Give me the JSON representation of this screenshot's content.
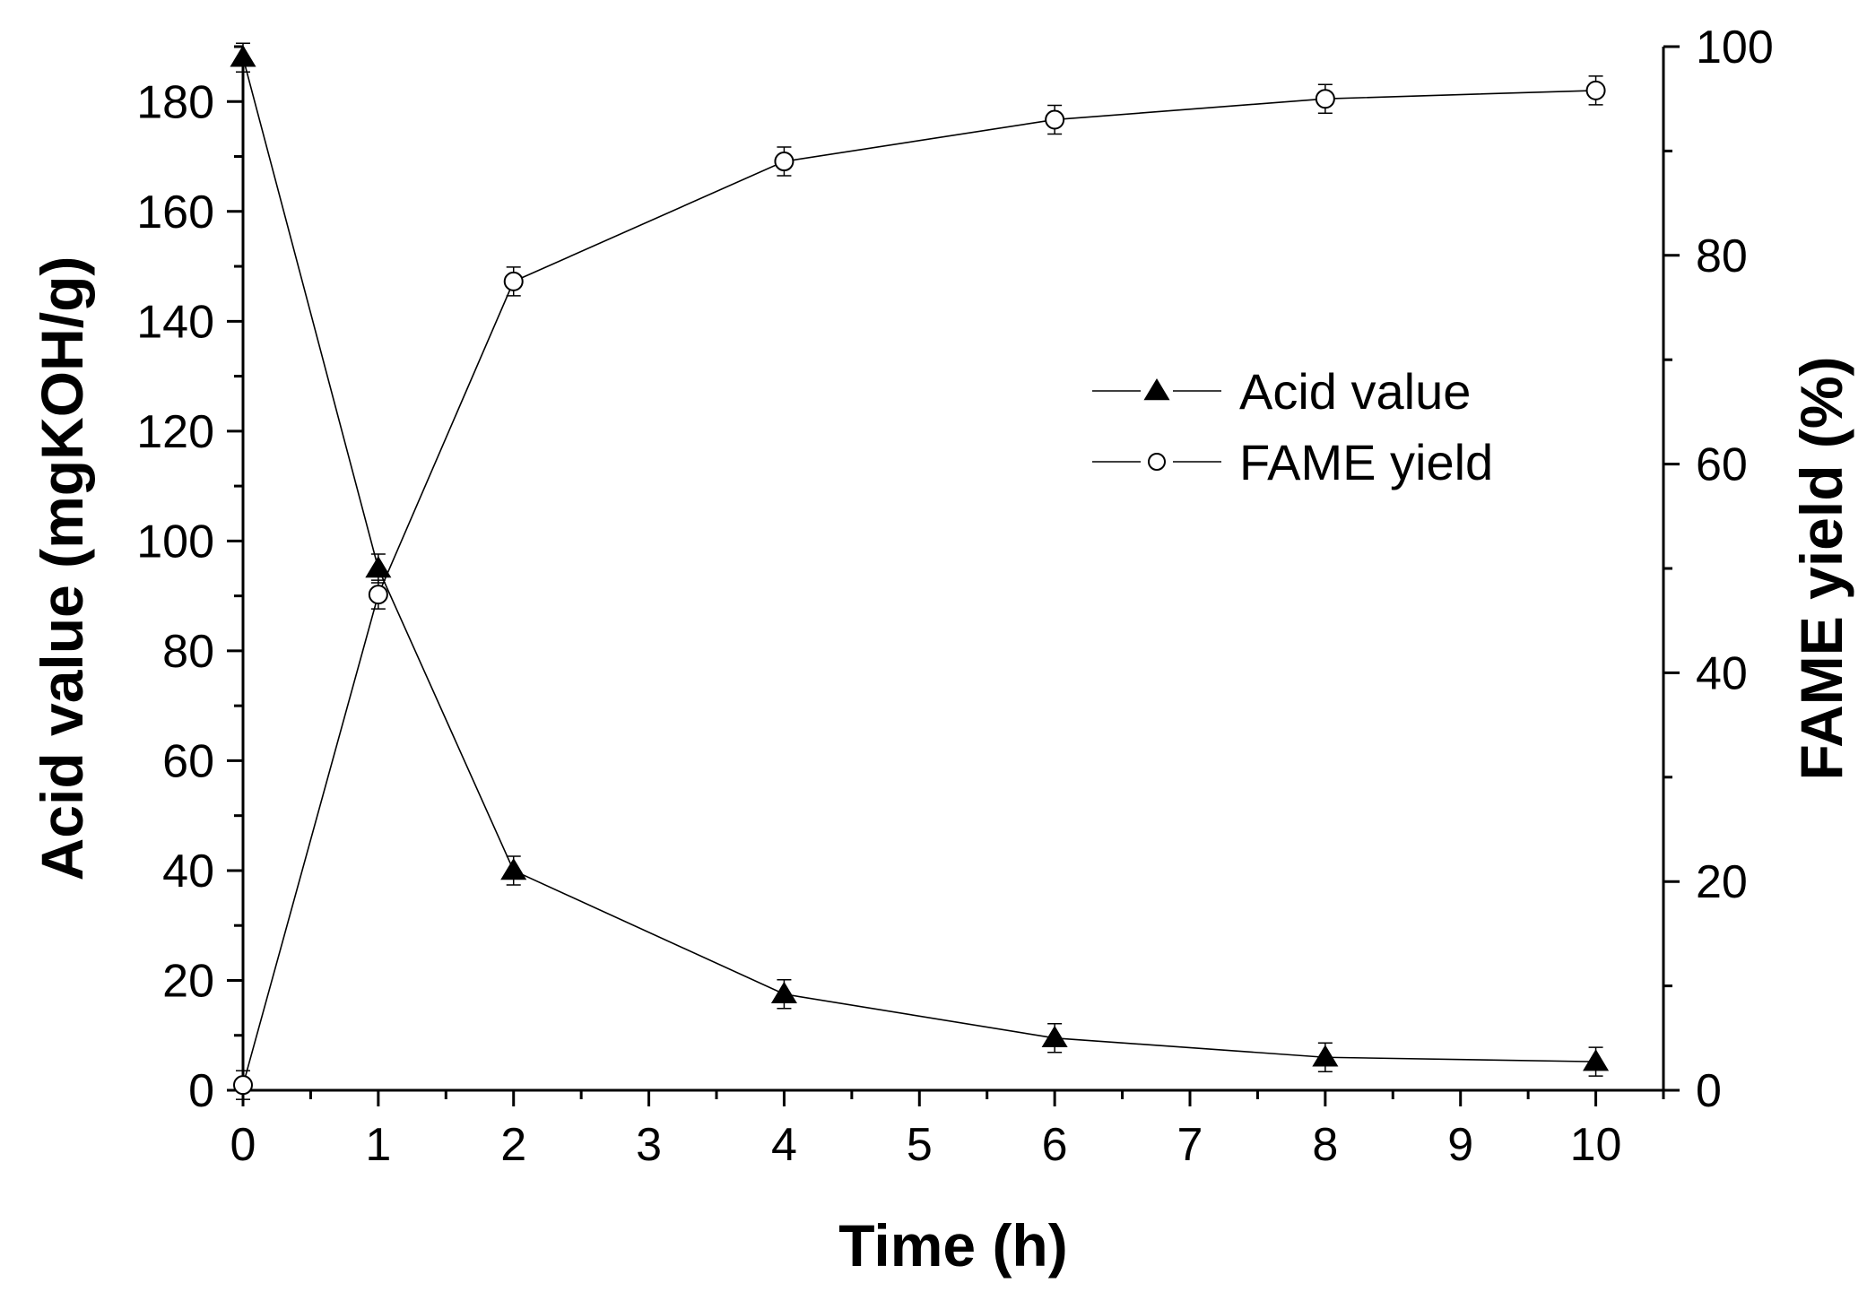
{
  "chart_data": {
    "type": "line",
    "title": "",
    "xlabel": "Time (h)",
    "ylabel_left": "Acid value (mgKOH/g)",
    "ylabel_right": "FAME yield (%)",
    "xlim": [
      0,
      10.5
    ],
    "ylim_left": [
      0,
      190
    ],
    "ylim_right": [
      0,
      100
    ],
    "x_ticks": [
      0,
      1,
      2,
      3,
      4,
      5,
      6,
      7,
      8,
      9,
      10
    ],
    "y_left_ticks": [
      0,
      20,
      40,
      60,
      80,
      100,
      120,
      140,
      160,
      180
    ],
    "y_right_ticks": [
      0,
      20,
      40,
      60,
      80,
      100
    ],
    "grid": false,
    "legend_position": "center-right",
    "series": [
      {
        "name": "Acid value",
        "axis": "left",
        "marker": "filled-triangle",
        "x": [
          0,
          1,
          2,
          4,
          6,
          8,
          10
        ],
        "y": [
          188,
          95,
          40,
          17.5,
          9.5,
          6,
          5.2
        ]
      },
      {
        "name": "FAME yield",
        "axis": "right",
        "marker": "open-circle",
        "x": [
          0,
          1,
          2,
          4,
          6,
          8,
          10
        ],
        "y": [
          0.5,
          47.5,
          77.5,
          89,
          93,
          95,
          95.8
        ]
      }
    ]
  }
}
